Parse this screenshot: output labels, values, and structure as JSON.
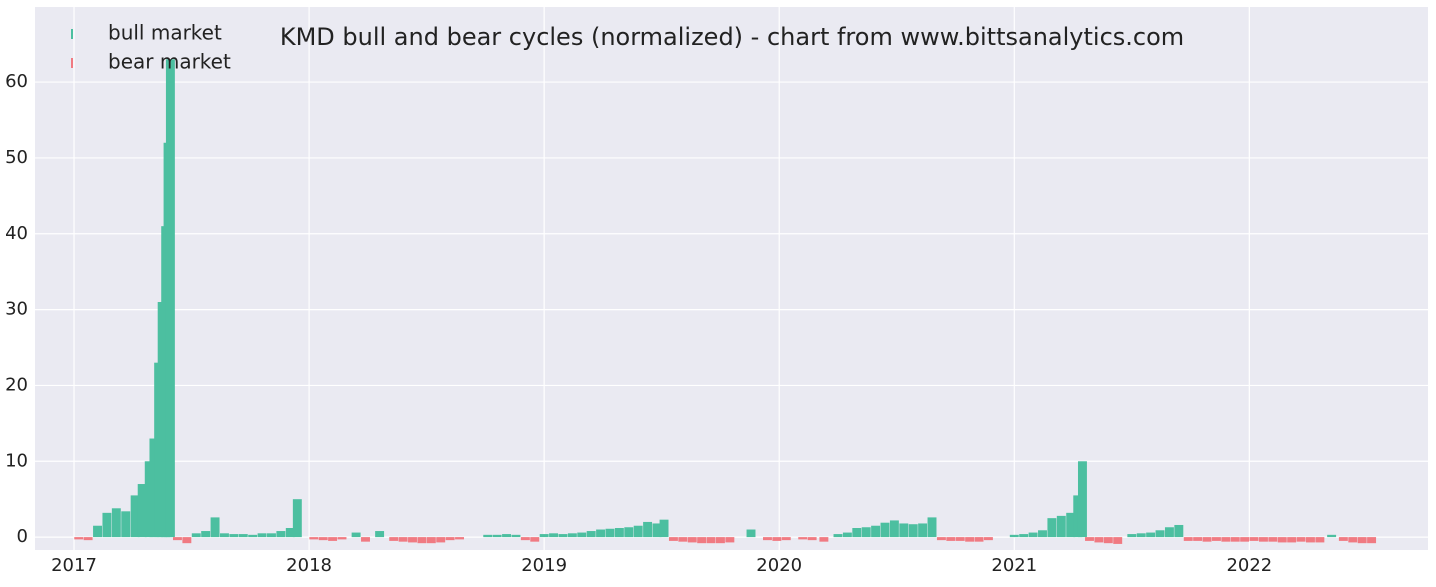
{
  "chart_data": {
    "type": "bar",
    "title": "KMD bull and bear cycles (normalized)  - chart from www.bittsanalytics.com",
    "legend": "upper left",
    "grid": true,
    "xlim": [
      2016.834,
      2022.76
    ],
    "xticks": [
      2017,
      2018,
      2019,
      2020,
      2021,
      2022
    ],
    "ylim": [
      -1.7,
      69.9
    ],
    "yticks": [
      0,
      10,
      20,
      30,
      40,
      50,
      60
    ],
    "series": [
      {
        "name": "bull market",
        "color": "#4cbfa0",
        "x": [
          2017.1,
          2017.14,
          2017.18,
          2017.22,
          2017.26,
          2017.29,
          2017.32,
          2017.34,
          2017.36,
          2017.375,
          2017.39,
          2017.4,
          2017.41,
          2017.52,
          2017.56,
          2017.6,
          2017.64,
          2017.68,
          2017.72,
          2017.76,
          2017.8,
          2017.84,
          2017.88,
          2017.92,
          2017.95,
          2018.2,
          2018.3,
          2018.76,
          2018.8,
          2018.84,
          2018.88,
          2019.0,
          2019.04,
          2019.08,
          2019.12,
          2019.16,
          2019.2,
          2019.24,
          2019.28,
          2019.32,
          2019.36,
          2019.4,
          2019.44,
          2019.48,
          2019.51,
          2019.88,
          2020.25,
          2020.29,
          2020.33,
          2020.37,
          2020.41,
          2020.45,
          2020.49,
          2020.53,
          2020.57,
          2020.61,
          2020.65,
          2021.0,
          2021.04,
          2021.08,
          2021.12,
          2021.16,
          2021.2,
          2021.24,
          2021.27,
          2021.29,
          2021.5,
          2021.54,
          2021.58,
          2021.62,
          2021.66,
          2021.7,
          2022.35
        ],
        "values": [
          1.5,
          3.2,
          3.8,
          3.4,
          5.5,
          7,
          10,
          13,
          23,
          31,
          41,
          52,
          63,
          0.5,
          0.8,
          2.6,
          0.5,
          0.4,
          0.4,
          0.3,
          0.5,
          0.5,
          0.8,
          1.2,
          5,
          0.6,
          0.8,
          0.3,
          0.3,
          0.4,
          0.3,
          0.4,
          0.5,
          0.4,
          0.5,
          0.6,
          0.8,
          1.0,
          1.1,
          1.2,
          1.3,
          1.5,
          2.0,
          1.8,
          2.3,
          1.0,
          0.4,
          0.6,
          1.2,
          1.3,
          1.5,
          1.9,
          2.2,
          1.8,
          1.7,
          1.8,
          2.6,
          0.3,
          0.4,
          0.6,
          0.9,
          2.5,
          2.8,
          3.2,
          5.5,
          10,
          0.4,
          0.5,
          0.6,
          0.9,
          1.3,
          1.6,
          0.3
        ]
      },
      {
        "name": "bear market",
        "color": "#f07a82",
        "x": [
          2017.02,
          2017.06,
          2017.44,
          2017.48,
          2018.02,
          2018.06,
          2018.1,
          2018.14,
          2018.24,
          2018.36,
          2018.4,
          2018.44,
          2018.48,
          2018.52,
          2018.56,
          2018.6,
          2018.64,
          2018.92,
          2018.96,
          2019.55,
          2019.59,
          2019.63,
          2019.67,
          2019.71,
          2019.75,
          2019.79,
          2019.95,
          2019.99,
          2020.03,
          2020.1,
          2020.14,
          2020.19,
          2020.69,
          2020.73,
          2020.77,
          2020.81,
          2020.85,
          2020.89,
          2021.32,
          2021.36,
          2021.4,
          2021.44,
          2021.74,
          2021.78,
          2021.82,
          2021.86,
          2021.9,
          2021.94,
          2021.98,
          2022.02,
          2022.06,
          2022.1,
          2022.14,
          2022.18,
          2022.22,
          2022.26,
          2022.3,
          2022.4,
          2022.44,
          2022.48,
          2022.52
        ],
        "values": [
          -0.3,
          -0.4,
          -0.4,
          -0.8,
          -0.3,
          -0.4,
          -0.5,
          -0.3,
          -0.6,
          -0.5,
          -0.6,
          -0.7,
          -0.8,
          -0.8,
          -0.7,
          -0.4,
          -0.3,
          -0.4,
          -0.6,
          -0.5,
          -0.6,
          -0.7,
          -0.8,
          -0.8,
          -0.8,
          -0.7,
          -0.4,
          -0.5,
          -0.4,
          -0.3,
          -0.4,
          -0.6,
          -0.4,
          -0.5,
          -0.5,
          -0.6,
          -0.6,
          -0.4,
          -0.5,
          -0.7,
          -0.8,
          -0.9,
          -0.5,
          -0.5,
          -0.6,
          -0.5,
          -0.6,
          -0.6,
          -0.6,
          -0.5,
          -0.6,
          -0.6,
          -0.7,
          -0.7,
          -0.6,
          -0.7,
          -0.7,
          -0.5,
          -0.7,
          -0.8,
          -0.8
        ]
      }
    ]
  }
}
